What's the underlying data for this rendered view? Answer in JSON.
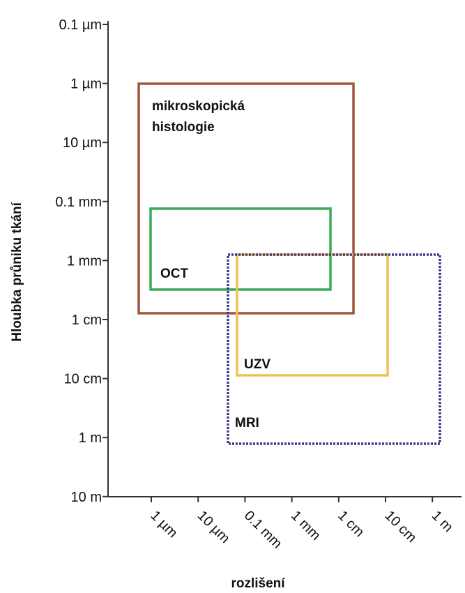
{
  "axes": {
    "y_label": "Hloubka průniku tkání",
    "x_label": "rozlišení",
    "y_ticks": [
      "0.1 µm",
      "1 µm",
      "10 µm",
      "0.1 mm",
      "1 mm",
      "1 cm",
      "10 cm",
      "1 m",
      "10 m"
    ],
    "x_ticks": [
      "1 µm",
      "10 µm",
      "0.1 mm",
      "1 mm",
      "1 cm",
      "10 cm",
      "1 m"
    ]
  },
  "regions": [
    {
      "label": [
        "mikroskopická",
        "histologie"
      ]
    },
    {
      "label": [
        "OCT"
      ]
    },
    {
      "label": [
        "UZV"
      ]
    },
    {
      "label": [
        "MRI"
      ]
    }
  ]
}
